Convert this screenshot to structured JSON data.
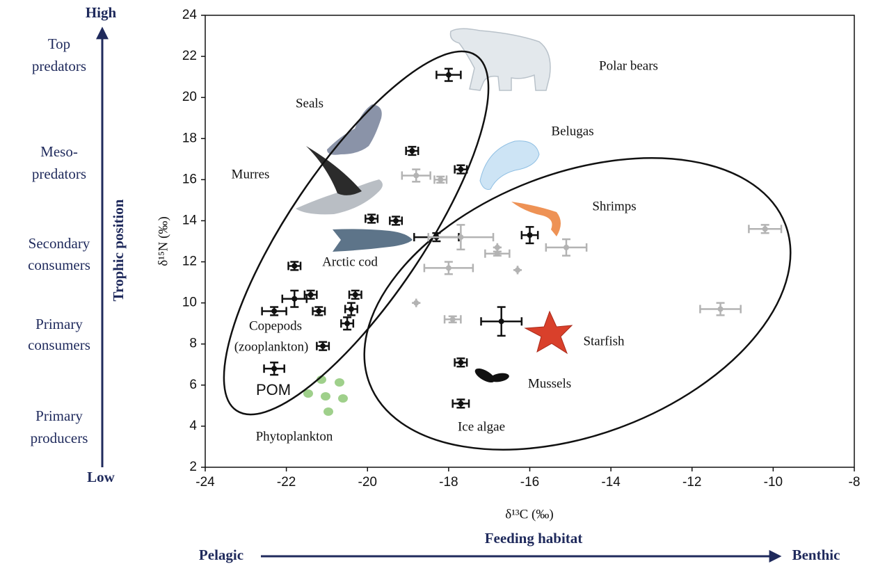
{
  "chart_data": {
    "type": "scatter",
    "xlabel": "δ¹³C (‰)",
    "ylabel": "δ¹⁵N (‰)",
    "xlim": [
      -24,
      -8
    ],
    "ylim": [
      2,
      24
    ],
    "xticks": [
      -24,
      -22,
      -20,
      -18,
      -16,
      -14,
      -12,
      -10,
      -8
    ],
    "yticks": [
      2,
      4,
      6,
      8,
      10,
      12,
      14,
      16,
      18,
      20,
      22,
      24
    ],
    "series": [
      {
        "color": "#111111",
        "x": [
          -18.0,
          -18.9,
          -17.7,
          -19.9,
          -19.3,
          -21.8,
          -21.8,
          -21.4,
          -20.3,
          -21.2,
          -20.4,
          -22.3,
          -20.5,
          -21.1,
          -22.3,
          -18.3,
          -16.0,
          -16.7,
          -17.7,
          -17.7
        ],
        "y": [
          21.1,
          17.4,
          16.5,
          14.1,
          14.0,
          11.8,
          10.2,
          10.4,
          10.4,
          9.6,
          9.7,
          9.6,
          9.0,
          7.9,
          6.8,
          13.2,
          13.3,
          9.1,
          7.1,
          5.1
        ],
        "xerr": [
          0.3,
          0.15,
          0.15,
          0.15,
          0.15,
          0.15,
          0.3,
          0.15,
          0.15,
          0.15,
          0.15,
          0.3,
          0.15,
          0.15,
          0.25,
          0.55,
          0.2,
          0.5,
          0.15,
          0.2
        ],
        "yerr": [
          0.3,
          0.2,
          0.2,
          0.2,
          0.2,
          0.2,
          0.4,
          0.2,
          0.2,
          0.2,
          0.3,
          0.2,
          0.3,
          0.2,
          0.3,
          0.2,
          0.4,
          0.7,
          0.2,
          0.2
        ]
      },
      {
        "color": "#b3b3b3",
        "x": [
          -18.8,
          -18.2,
          -17.7,
          -16.8,
          -16.8,
          -16.3,
          -18.0,
          -18.8,
          -17.9,
          -15.1,
          -10.2,
          -11.3
        ],
        "y": [
          16.2,
          16.0,
          13.2,
          12.4,
          12.7,
          11.6,
          11.7,
          10.0,
          9.2,
          12.7,
          13.6,
          9.7
        ],
        "xerr": [
          0.35,
          0.15,
          0.8,
          0.3,
          0,
          0,
          0.6,
          0,
          0.2,
          0.5,
          0.4,
          0.5
        ],
        "yerr": [
          0.3,
          0.15,
          0.6,
          0.1,
          0,
          0,
          0.3,
          0,
          0.15,
          0.4,
          0.2,
          0.3
        ]
      }
    ],
    "annotations": [
      "Polar bears",
      "Seals",
      "Belugas",
      "Murres",
      "Shrimps",
      "Arctic cod",
      "Copepods",
      "(zooplankton)",
      "POM",
      "Starfish",
      "Mussels",
      "Ice algae",
      "Phytoplankton"
    ]
  },
  "trophic_axis": {
    "title": "Trophic position",
    "high": "High",
    "low": "Low",
    "levels": [
      [
        "Top",
        "predators"
      ],
      [
        "Meso-",
        "predators"
      ],
      [
        "Secondary",
        "consumers"
      ],
      [
        "Primary",
        "consumers"
      ],
      [
        "Primary",
        "producers"
      ]
    ]
  },
  "habitat_axis": {
    "title": "Feeding habitat",
    "left": "Pelagic",
    "right": "Benthic"
  }
}
